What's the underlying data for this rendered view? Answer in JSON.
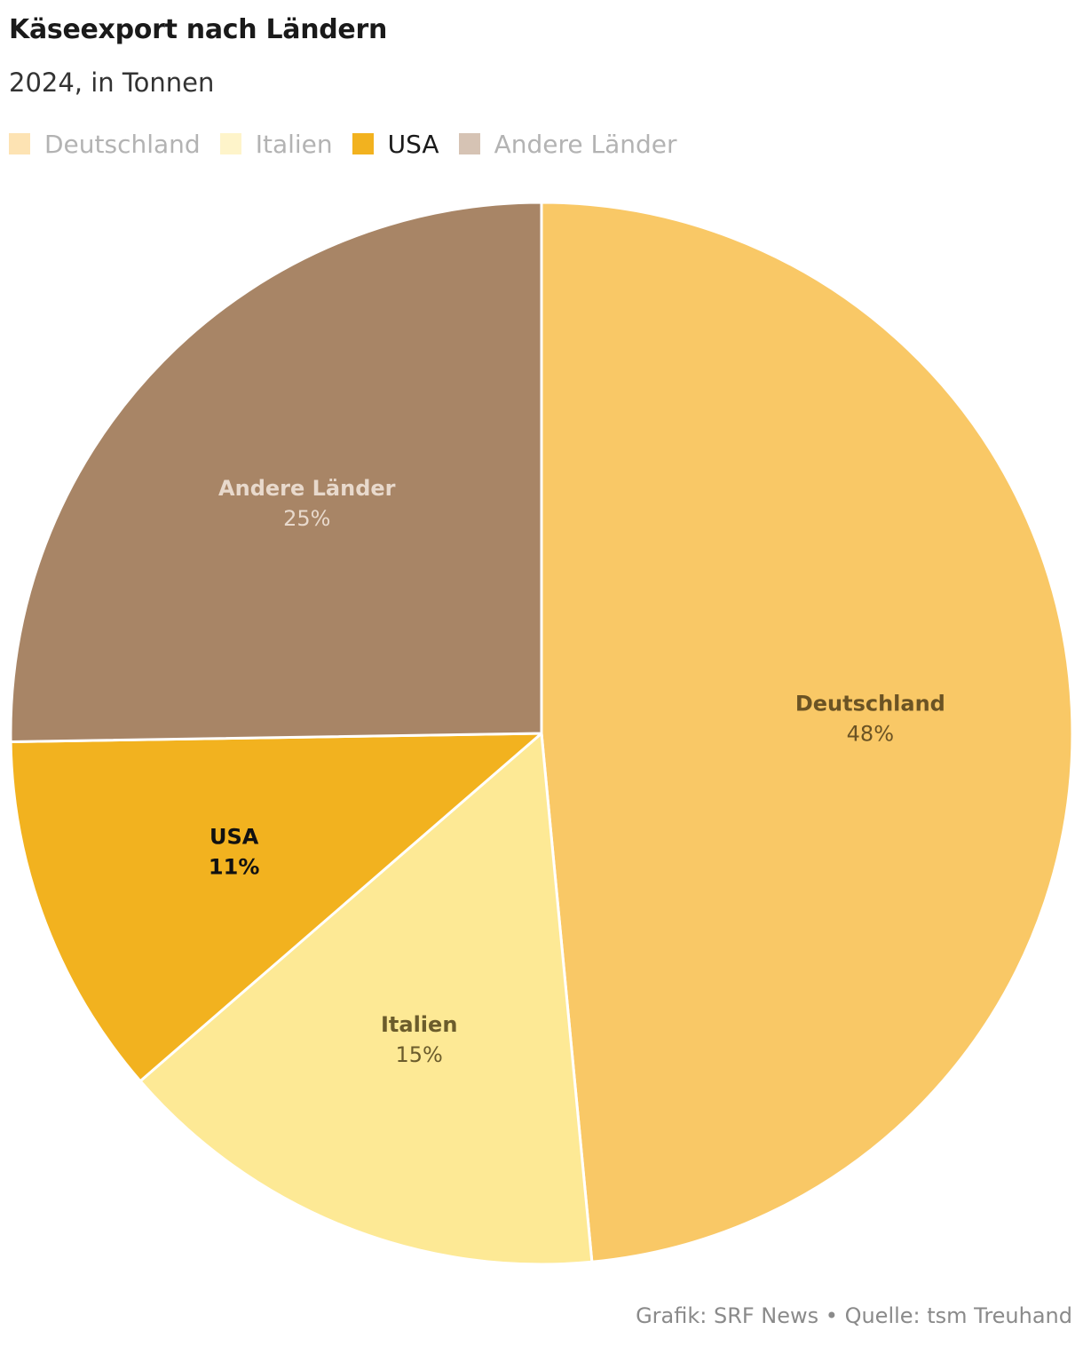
{
  "chart_data": {
    "type": "pie",
    "title": "Käseexport nach Ländern",
    "subtitle": "2024, in Tonnen",
    "legend_position": "top-left",
    "slices": [
      {
        "name": "Deutschland",
        "value": 48,
        "label": "48%",
        "color": "#f9c866",
        "legend_color": "#fde3b3",
        "label_color": "#6b5324",
        "active": false
      },
      {
        "name": "Italien",
        "value": 15,
        "label": "15%",
        "color": "#fde995",
        "legend_color": "#fef4ca",
        "label_color": "#6b5c2c",
        "active": false
      },
      {
        "name": "USA",
        "value": 11,
        "label": "11%",
        "color": "#f2b21f",
        "legend_color": "#f2b21f",
        "label_color": "#111111",
        "active": true
      },
      {
        "name": "Andere Länder",
        "value": 25,
        "label": "25%",
        "color": "#a88566",
        "legend_color": "#d6c3b4",
        "label_color": "#e8d9cc",
        "active": false
      }
    ]
  },
  "footer": "Grafik: SRF News • Quelle: tsm Treuhand"
}
